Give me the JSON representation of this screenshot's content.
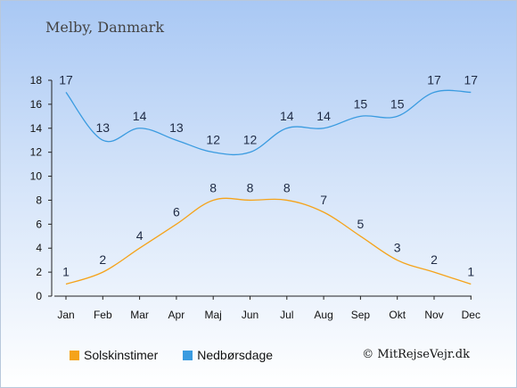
{
  "header": {
    "location": "Melby, Danmark"
  },
  "chart_data": {
    "type": "line",
    "categories": [
      "Jan",
      "Feb",
      "Mar",
      "Apr",
      "Maj",
      "Jun",
      "Jul",
      "Aug",
      "Sep",
      "Okt",
      "Nov",
      "Dec"
    ],
    "series": [
      {
        "name": "Solskinstimer",
        "color": "#f5a31a",
        "values": [
          1,
          2,
          4,
          6,
          8,
          8,
          8,
          7,
          5,
          3,
          2,
          1
        ]
      },
      {
        "name": "Nedbørsdage",
        "color": "#3a9be0",
        "values": [
          17,
          13,
          14,
          13,
          12,
          12,
          14,
          14,
          15,
          15,
          17,
          17
        ]
      }
    ],
    "yticks": [
      0,
      2,
      4,
      6,
      8,
      10,
      12,
      14,
      16,
      18
    ],
    "ylim": [
      0,
      18
    ],
    "grid": false,
    "legend_position": "bottom-left"
  },
  "footer": {
    "credit": "© MitRejseVejr.dk"
  }
}
